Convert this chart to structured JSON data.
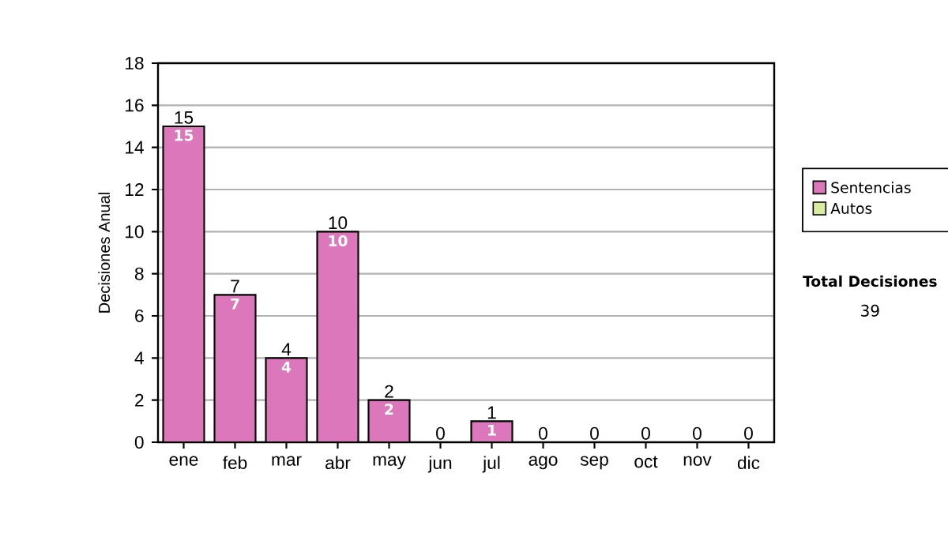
{
  "chart_data": {
    "type": "bar",
    "stacked": true,
    "ylabel": "Decisiones Anual",
    "categories": [
      "ene",
      "feb",
      "mar",
      "abr",
      "may",
      "jun",
      "jul",
      "ago",
      "sep",
      "oct",
      "nov",
      "dic"
    ],
    "series": [
      {
        "name": "Sentencias",
        "color": "#dd77bb",
        "values": [
          15,
          7,
          4,
          10,
          2,
          0,
          1,
          0,
          0,
          0,
          0,
          0
        ],
        "value_labels": [
          "15",
          "7",
          "4",
          "10",
          "2",
          null,
          "1",
          null,
          null,
          null,
          null,
          null
        ]
      },
      {
        "name": "Autos",
        "color": "#d8eca0",
        "values": [
          0,
          0,
          0,
          0,
          0,
          0,
          0,
          0,
          0,
          0,
          0,
          0
        ]
      }
    ],
    "totals": [
      "15",
      "7",
      "4",
      "10",
      "2",
      "0",
      "1",
      "0",
      "0",
      "0",
      "0",
      "0"
    ],
    "ylim": [
      0,
      18
    ],
    "yticks": [
      0,
      2,
      4,
      6,
      8,
      10,
      12,
      14,
      16,
      18
    ],
    "grid": "y",
    "legend": "right",
    "annotations": [
      "Total Decisiones",
      "39"
    ]
  }
}
